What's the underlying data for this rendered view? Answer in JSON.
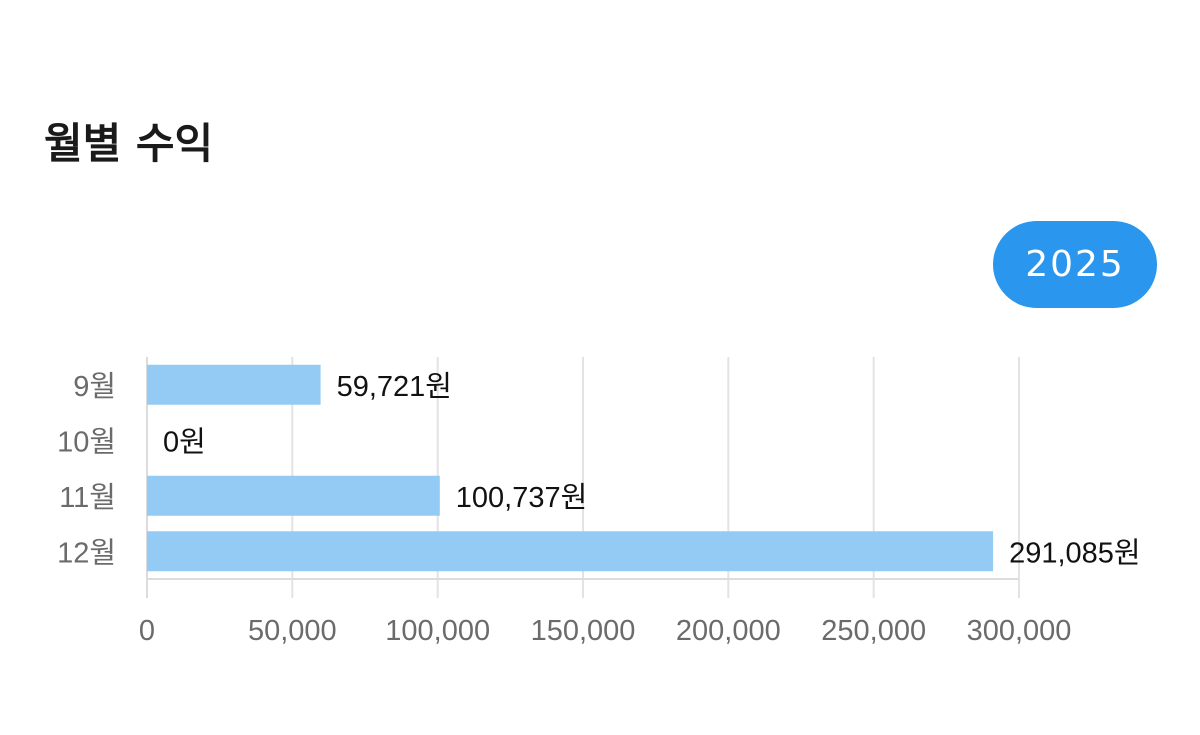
{
  "header": {
    "title": "월별 수익"
  },
  "year_selector": {
    "label": "2025"
  },
  "colors": {
    "bar": "#93cbf4",
    "gridline": "#e3e3e3",
    "axis": "#dcdcdc",
    "pill": "#2a96ee"
  },
  "chart_data": {
    "type": "bar",
    "orientation": "horizontal",
    "categories": [
      "9월",
      "10월",
      "11월",
      "12월"
    ],
    "values": [
      59721,
      0,
      100737,
      291085
    ],
    "data_labels": [
      "59,721원",
      "0원",
      "100,737원",
      "291,085원"
    ],
    "xticks": [
      0,
      50000,
      100000,
      150000,
      200000,
      250000,
      300000
    ],
    "xtick_labels": [
      "0",
      "50,000",
      "100,000",
      "150,000",
      "200,000",
      "250,000",
      "300,000"
    ],
    "xlim": [
      0,
      300000
    ],
    "grid": true,
    "legend": "none"
  }
}
